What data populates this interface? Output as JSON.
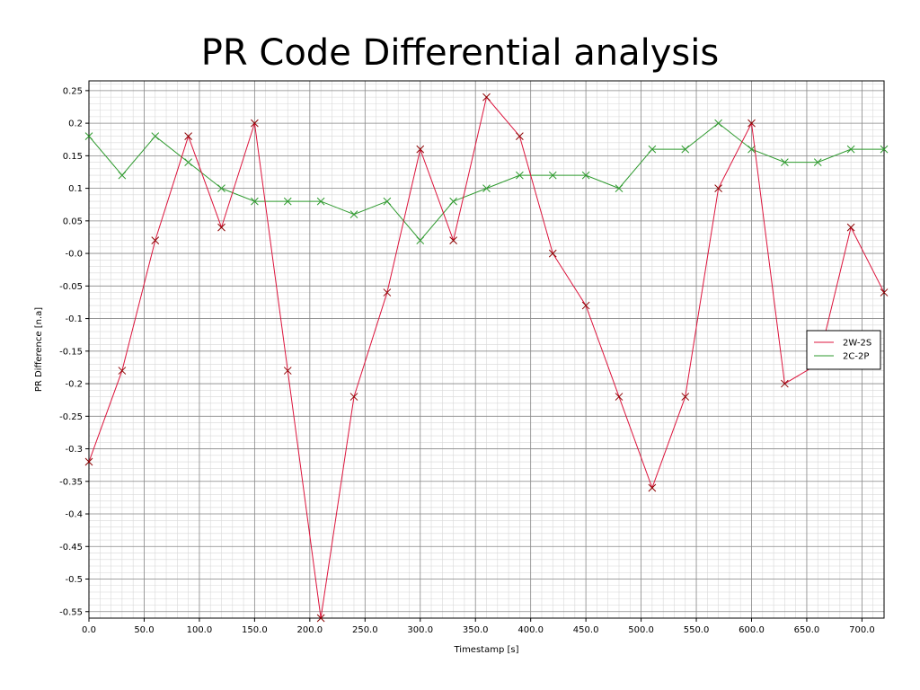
{
  "chart_data": {
    "type": "line",
    "title": "PR Code Differential analysis",
    "xlabel": "Timestamp [s]",
    "ylabel": "PR Difference [n.a]",
    "xlim": [
      0,
      720
    ],
    "ylim": [
      -0.56,
      0.265
    ],
    "x_ticks": [
      0,
      50,
      100,
      150,
      200,
      250,
      300,
      350,
      400,
      450,
      500,
      550,
      600,
      650,
      700
    ],
    "x_tick_labels": [
      "0.0",
      "50.0",
      "100.0",
      "150.0",
      "200.0",
      "250.0",
      "300.0",
      "350.0",
      "400.0",
      "450.0",
      "500.0",
      "550.0",
      "600.0",
      "650.0",
      "700.0"
    ],
    "y_ticks": [
      0.25,
      0.2,
      0.15,
      0.1,
      0.05,
      0.0,
      -0.05,
      -0.1,
      -0.15,
      -0.2,
      -0.25,
      -0.3,
      -0.35,
      -0.4,
      -0.45,
      -0.5,
      -0.55
    ],
    "y_tick_labels": [
      "0.25",
      "0.2",
      "0.15",
      "0.1",
      "0.05",
      "-0.0",
      "-0.05",
      "-0.1",
      "-0.15",
      "-0.2",
      "-0.25",
      "-0.3",
      "-0.35",
      "-0.4",
      "-0.45",
      "-0.5",
      "-0.55"
    ],
    "grid": true,
    "legend_position": "right",
    "x": [
      0,
      30,
      60,
      90,
      120,
      150,
      180,
      210,
      240,
      270,
      300,
      330,
      360,
      390,
      420,
      450,
      480,
      510,
      540,
      570,
      600,
      630,
      660,
      690,
      720
    ],
    "series": [
      {
        "name": "2W-2S",
        "color": "#dc143c",
        "marker_color": "#8b0000",
        "values": [
          -0.32,
          -0.18,
          0.02,
          0.18,
          0.04,
          0.2,
          -0.18,
          -0.56,
          -0.22,
          -0.06,
          0.16,
          0.02,
          0.24,
          0.18,
          0.0,
          -0.08,
          -0.22,
          -0.36,
          -0.22,
          0.1,
          0.2,
          -0.2,
          -0.17,
          0.04,
          -0.06
        ],
        "marker_mask": [
          true,
          true,
          true,
          true,
          true,
          true,
          true,
          true,
          true,
          true,
          true,
          true,
          true,
          true,
          true,
          true,
          true,
          true,
          true,
          true,
          true,
          true,
          false,
          true,
          true
        ]
      },
      {
        "name": "2C-2P",
        "color": "#2e9a2e",
        "marker_color": "#2e9a2e",
        "values": [
          0.18,
          0.12,
          0.18,
          0.14,
          0.1,
          0.08,
          0.08,
          0.08,
          0.06,
          0.08,
          0.02,
          0.08,
          0.1,
          0.12,
          0.12,
          0.12,
          0.1,
          0.16,
          0.16,
          0.2,
          0.16,
          0.14,
          0.14,
          0.16,
          0.16
        ],
        "marker_mask": [
          true,
          true,
          true,
          true,
          true,
          true,
          true,
          true,
          true,
          true,
          true,
          true,
          true,
          true,
          true,
          true,
          true,
          true,
          true,
          true,
          true,
          true,
          true,
          true,
          true
        ]
      }
    ]
  }
}
